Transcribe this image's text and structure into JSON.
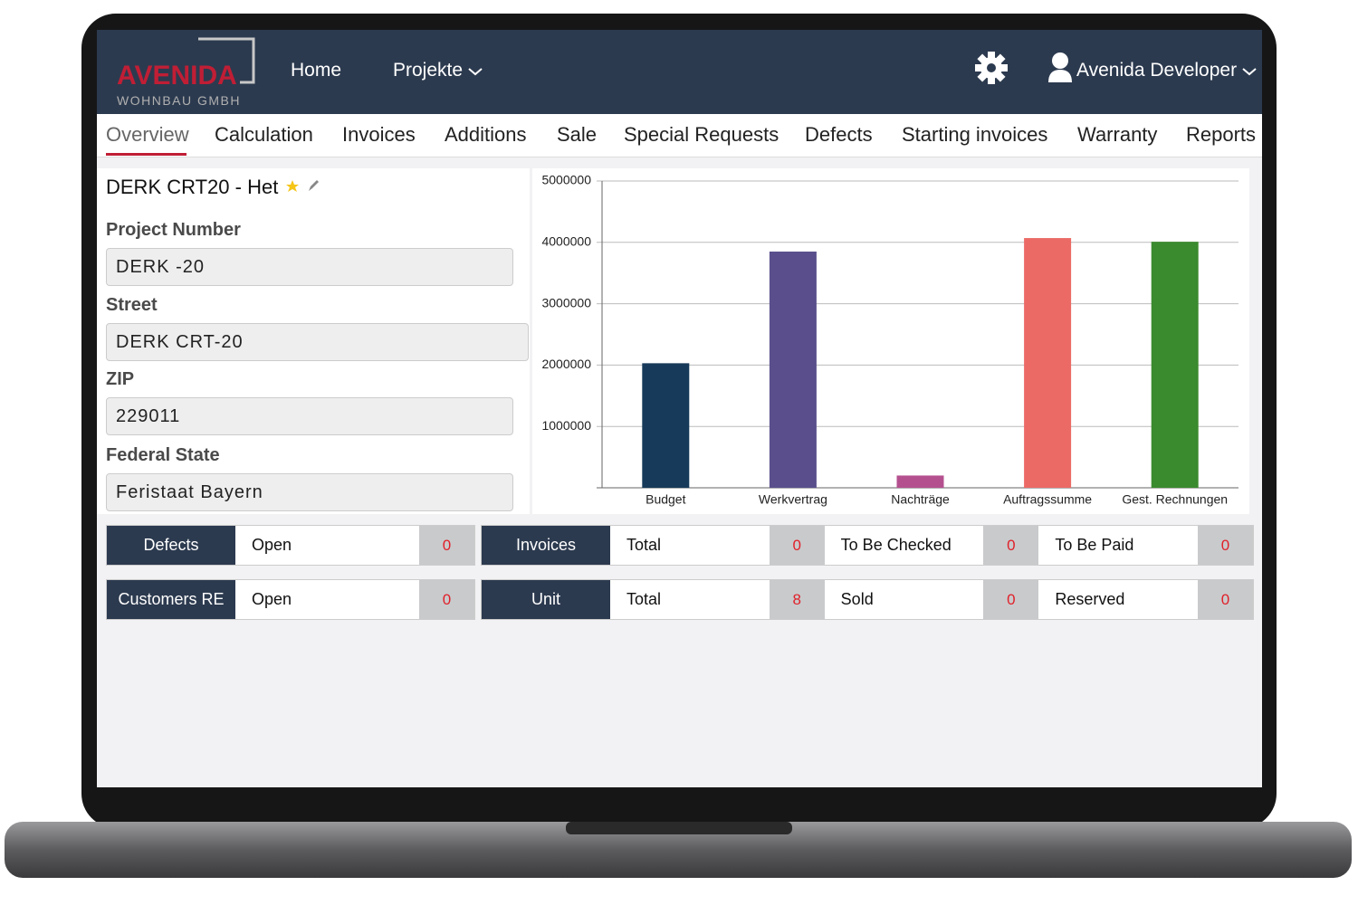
{
  "logo": {
    "name": "AVENIDA",
    "subtitle": "WOHNBAU GMBH"
  },
  "nav": {
    "links": [
      "Home",
      "Projekte"
    ],
    "user": "Avenida Developer"
  },
  "tabs": [
    "Overview",
    "Calculation",
    "Invoices",
    "Additions",
    "Sale",
    "Special Requests",
    "Defects",
    "Starting invoices",
    "Warranty",
    "Reports"
  ],
  "project": {
    "title": "DERK CRT20 - Het",
    "fields": [
      {
        "label": "Project Number",
        "value": "DERK -20"
      },
      {
        "label": "Street",
        "value": "DERK CRT-20"
      },
      {
        "label": "ZIP",
        "value": "229011"
      },
      {
        "label": "Federal State",
        "value": "Feristaat Bayern"
      }
    ]
  },
  "chart_data": {
    "type": "bar",
    "categories": [
      "Budget",
      "Werkvertrag",
      "Nachträge",
      "Auftragssumme",
      "Gest. Rechnungen"
    ],
    "values": [
      2030000,
      3850000,
      200000,
      4070000,
      4010000
    ],
    "colors": [
      "#173a5a",
      "#5a4f8c",
      "#b5508f",
      "#ec6a66",
      "#3a8a2e"
    ],
    "ylim": [
      0,
      5000000
    ],
    "yticks": [
      1000000,
      2000000,
      3000000,
      4000000,
      5000000
    ],
    "grid": true
  },
  "stat_rows": [
    [
      {
        "label": "Defects",
        "items": [
          {
            "name": "Open",
            "count": 0
          }
        ]
      },
      {
        "label": "Invoices",
        "items": [
          {
            "name": "Total",
            "count": 0
          },
          {
            "name": "To Be Checked",
            "count": 0
          },
          {
            "name": "To Be Paid",
            "count": 0
          }
        ]
      }
    ],
    [
      {
        "label": "Customers RE",
        "items": [
          {
            "name": "Open",
            "count": 0
          }
        ]
      },
      {
        "label": "Unit",
        "items": [
          {
            "name": "Total",
            "count": 8
          },
          {
            "name": "Sold",
            "count": 0
          },
          {
            "name": "Reserved",
            "count": 0
          }
        ]
      }
    ]
  ]
}
